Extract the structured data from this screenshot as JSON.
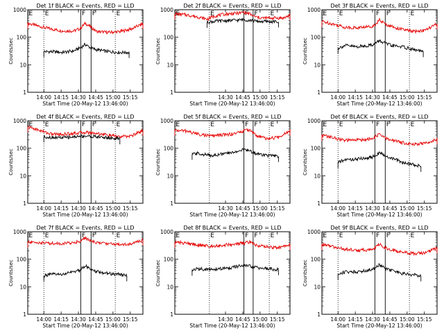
{
  "chart_data": [
    {
      "type": "line",
      "title": "Det 1f BLACK = Events, RED = LLD",
      "xlabel": "Start Time (20-May-12 13:46:00)",
      "ylabel": "Counts/sec",
      "yscale": "log",
      "ylim": [
        1,
        1000
      ],
      "x_ticks": [
        "14:00",
        "14:15",
        "14:30",
        "14:45",
        "15:00",
        "15:15"
      ],
      "x_tick_minutes": [
        14,
        29,
        44,
        59,
        74,
        89
      ],
      "x_range_minutes": [
        0,
        100
      ],
      "y_ticks": [
        "1",
        "10",
        "100",
        "1000"
      ],
      "markers": [
        {
          "label": "E",
          "minute": 0,
          "style": "dotted"
        },
        {
          "label": "E",
          "minute": 14,
          "style": "dotted"
        },
        {
          "label": "F",
          "minute": 46,
          "style": "solid"
        },
        {
          "label": "F",
          "minute": 55,
          "style": "solid"
        },
        {
          "label": "E",
          "minute": 76,
          "style": "dotted"
        }
      ],
      "series": [
        {
          "name": "LLD",
          "color": "#e60000",
          "x": [
            0,
            10,
            20,
            30,
            40,
            45,
            50,
            55,
            60,
            70,
            80,
            90,
            100
          ],
          "y": [
            320,
            250,
            200,
            170,
            170,
            200,
            320,
            230,
            160,
            150,
            160,
            200,
            310
          ]
        },
        {
          "name": "Events",
          "color": "#000000",
          "x": [
            14,
            20,
            30,
            40,
            45,
            50,
            55,
            60,
            70,
            80,
            88
          ],
          "y": [
            30,
            30,
            28,
            32,
            40,
            55,
            40,
            35,
            30,
            28,
            28
          ]
        }
      ]
    },
    {
      "type": "line",
      "title": "Det 2f BLACK = Events, RED = LLD",
      "xlabel": "Start Time (20-May-12 13:46:00)",
      "ylabel": "Counts/sec",
      "yscale": "log",
      "ylim": [
        1,
        1000
      ],
      "x_ticks": [
        "14:30",
        "14:45",
        "15:00",
        "15:15"
      ],
      "x_tick_minutes": [
        44,
        59,
        74,
        89
      ],
      "x_range_minutes": [
        0,
        100
      ],
      "y_ticks": [
        "1",
        "10",
        "100",
        "1000"
      ],
      "markers": [
        {
          "label": "E",
          "minute": 0,
          "style": "dotted"
        },
        {
          "label": "E",
          "minute": 30,
          "style": "dotted"
        },
        {
          "label": "F",
          "minute": 60,
          "style": "solid"
        },
        {
          "label": "F",
          "minute": 68,
          "style": "solid"
        },
        {
          "label": "E",
          "minute": 82,
          "style": "dotted"
        }
      ],
      "series": [
        {
          "name": "LLD",
          "color": "#e60000",
          "x": [
            0,
            10,
            20,
            28,
            35,
            45,
            55,
            60,
            65,
            70,
            75,
            85,
            95,
            100
          ],
          "y": [
            700,
            650,
            550,
            450,
            600,
            700,
            750,
            800,
            700,
            550,
            500,
            500,
            500,
            650
          ]
        },
        {
          "name": "Events",
          "color": "#000000",
          "x": [
            28,
            35,
            45,
            55,
            60,
            65,
            70,
            80,
            90
          ],
          "y": [
            350,
            380,
            400,
            420,
            430,
            420,
            380,
            370,
            360
          ]
        }
      ]
    },
    {
      "type": "line",
      "title": "Det 3f BLACK = Events, RED = LLD",
      "xlabel": "Start Time (20-May-12 13:46:00)",
      "ylabel": "Counts/sec",
      "yscale": "log",
      "ylim": [
        1,
        1000
      ],
      "x_ticks": [
        "14:00",
        "14:15",
        "14:30",
        "14:45",
        "15:00",
        "15:15"
      ],
      "x_tick_minutes": [
        14,
        29,
        44,
        59,
        74,
        89
      ],
      "x_range_minutes": [
        0,
        100
      ],
      "y_ticks": [
        "1",
        "10",
        "100",
        "1000"
      ],
      "markers": [
        {
          "label": "E",
          "minute": 0,
          "style": "dotted"
        },
        {
          "label": "E",
          "minute": 14,
          "style": "dotted"
        },
        {
          "label": "F",
          "minute": 46,
          "style": "solid"
        },
        {
          "label": "F",
          "minute": 55,
          "style": "solid"
        },
        {
          "label": "E",
          "minute": 76,
          "style": "dotted"
        }
      ],
      "series": [
        {
          "name": "LLD",
          "color": "#e60000",
          "x": [
            0,
            10,
            20,
            30,
            40,
            45,
            50,
            55,
            60,
            70,
            80,
            90,
            100
          ],
          "y": [
            380,
            300,
            230,
            220,
            240,
            260,
            420,
            300,
            250,
            190,
            160,
            180,
            300
          ]
        },
        {
          "name": "Events",
          "color": "#000000",
          "x": [
            14,
            20,
            30,
            40,
            45,
            50,
            55,
            60,
            70,
            80,
            88
          ],
          "y": [
            40,
            50,
            45,
            50,
            55,
            75,
            60,
            50,
            45,
            35,
            30
          ]
        }
      ]
    },
    {
      "type": "line",
      "title": "Det 4f BLACK = Events, RED = LLD",
      "xlabel": "Start Time (20-May-12 13:46:00)",
      "ylabel": "Counts/sec",
      "yscale": "log",
      "ylim": [
        1,
        1000
      ],
      "x_ticks": [
        "14:00",
        "14:15",
        "14:30",
        "14:45",
        "15:00",
        "15:15"
      ],
      "x_tick_minutes": [
        14,
        29,
        44,
        59,
        74,
        89
      ],
      "x_range_minutes": [
        0,
        100
      ],
      "y_ticks": [
        "1",
        "10",
        "100",
        "1000"
      ],
      "markers": [
        {
          "label": "E",
          "minute": 0,
          "style": "dotted"
        },
        {
          "label": "E",
          "minute": 14,
          "style": "dotted"
        },
        {
          "label": "F",
          "minute": 46,
          "style": "solid"
        },
        {
          "label": "F",
          "minute": 55,
          "style": "solid"
        },
        {
          "label": "E",
          "minute": 76,
          "style": "dotted"
        }
      ],
      "series": [
        {
          "name": "LLD",
          "color": "#e60000",
          "x": [
            0,
            10,
            20,
            30,
            40,
            50,
            60,
            70,
            80,
            90,
            100
          ],
          "y": [
            600,
            450,
            330,
            320,
            350,
            380,
            350,
            300,
            260,
            280,
            450
          ]
        },
        {
          "name": "Events",
          "color": "#000000",
          "x": [
            14,
            20,
            30,
            40,
            50,
            60,
            70,
            80
          ],
          "y": [
            260,
            250,
            240,
            260,
            280,
            260,
            240,
            220
          ]
        }
      ]
    },
    {
      "type": "line",
      "title": "Det 5f BLACK = Events, RED = LLD",
      "xlabel": "Start Time (20-May-12 13:46:00)",
      "ylabel": "Counts/sec",
      "yscale": "log",
      "ylim": [
        1,
        1000
      ],
      "x_ticks": [
        "14:30",
        "14:45",
        "15:00",
        "15:15"
      ],
      "x_tick_minutes": [
        44,
        59,
        74,
        89
      ],
      "x_range_minutes": [
        0,
        100
      ],
      "y_ticks": [
        "1",
        "10",
        "100",
        "1000"
      ],
      "markers": [
        {
          "label": "E",
          "minute": 0,
          "style": "dotted"
        },
        {
          "label": "E",
          "minute": 30,
          "style": "dotted"
        },
        {
          "label": "F",
          "minute": 60,
          "style": "solid"
        },
        {
          "label": "F",
          "minute": 68,
          "style": "solid"
        },
        {
          "label": "E",
          "minute": 82,
          "style": "dotted"
        }
      ],
      "series": [
        {
          "name": "LLD",
          "color": "#e60000",
          "x": [
            0,
            10,
            20,
            30,
            40,
            50,
            60,
            65,
            70,
            80,
            90,
            100
          ],
          "y": [
            450,
            420,
            330,
            280,
            300,
            330,
            420,
            480,
            300,
            220,
            250,
            450
          ]
        },
        {
          "name": "Events",
          "color": "#000000",
          "x": [
            15,
            20,
            30,
            40,
            50,
            60,
            65,
            70,
            80,
            90
          ],
          "y": [
            60,
            65,
            55,
            60,
            70,
            90,
            80,
            65,
            55,
            50
          ]
        }
      ]
    },
    {
      "type": "line",
      "title": "Det 6f BLACK = Events, RED = LLD",
      "xlabel": "Start Time (20-May-12 13:46:00)",
      "ylabel": "Counts/sec",
      "yscale": "log",
      "ylim": [
        1,
        1000
      ],
      "x_ticks": [
        "14:00",
        "14:15",
        "14:30",
        "14:45",
        "15:00",
        "15:15"
      ],
      "x_tick_minutes": [
        14,
        29,
        44,
        59,
        74,
        89
      ],
      "x_range_minutes": [
        0,
        100
      ],
      "y_ticks": [
        "1",
        "10",
        "100",
        "1000"
      ],
      "markers": [
        {
          "label": "E",
          "minute": 0,
          "style": "dotted"
        },
        {
          "label": "E",
          "minute": 14,
          "style": "dotted"
        },
        {
          "label": "F",
          "minute": 46,
          "style": "solid"
        },
        {
          "label": "F",
          "minute": 55,
          "style": "solid"
        },
        {
          "label": "E",
          "minute": 76,
          "style": "dotted"
        }
      ],
      "series": [
        {
          "name": "LLD",
          "color": "#e60000",
          "x": [
            0,
            10,
            20,
            30,
            40,
            45,
            50,
            55,
            60,
            70,
            80,
            90,
            100
          ],
          "y": [
            300,
            240,
            190,
            200,
            210,
            230,
            330,
            230,
            200,
            160,
            140,
            150,
            220
          ]
        },
        {
          "name": "Events",
          "color": "#000000",
          "x": [
            14,
            20,
            30,
            40,
            45,
            50,
            55,
            60,
            70,
            80,
            86
          ],
          "y": [
            30,
            38,
            40,
            45,
            50,
            70,
            50,
            45,
            30,
            25,
            22
          ]
        }
      ]
    },
    {
      "type": "line",
      "title": "Det 7f BLACK = Events, RED = LLD",
      "xlabel": "Start Time (20-May-12 13:46:00)",
      "ylabel": "Counts/sec",
      "yscale": "log",
      "ylim": [
        1,
        1000
      ],
      "x_ticks": [
        "14:00",
        "14:15",
        "14:30",
        "14:45",
        "15:00",
        "15:15"
      ],
      "x_tick_minutes": [
        14,
        29,
        44,
        59,
        74,
        89
      ],
      "x_range_minutes": [
        0,
        100
      ],
      "y_ticks": [
        "1",
        "10",
        "100",
        "1000"
      ],
      "markers": [
        {
          "label": "E",
          "minute": 0,
          "style": "dotted"
        },
        {
          "label": "E",
          "minute": 14,
          "style": "dotted"
        },
        {
          "label": "F",
          "minute": 46,
          "style": "solid"
        },
        {
          "label": "F",
          "minute": 55,
          "style": "solid"
        },
        {
          "label": "E",
          "minute": 76,
          "style": "dotted"
        }
      ],
      "series": [
        {
          "name": "LLD",
          "color": "#e60000",
          "x": [
            0,
            10,
            20,
            30,
            40,
            45,
            50,
            55,
            60,
            70,
            80,
            90,
            100
          ],
          "y": [
            420,
            400,
            380,
            370,
            400,
            450,
            600,
            440,
            400,
            370,
            350,
            360,
            500
          ]
        },
        {
          "name": "Events",
          "color": "#000000",
          "x": [
            14,
            20,
            30,
            40,
            45,
            50,
            55,
            60,
            70,
            80,
            86
          ],
          "y": [
            25,
            28,
            28,
            35,
            40,
            60,
            40,
            35,
            30,
            28,
            25
          ]
        }
      ]
    },
    {
      "type": "line",
      "title": "Det 8f BLACK = Events, RED = LLD",
      "xlabel": "Start Time (20-May-12 13:46:00)",
      "ylabel": "Counts/sec",
      "yscale": "log",
      "ylim": [
        1,
        1000
      ],
      "x_ticks": [
        "14:30",
        "14:45",
        "15:00",
        "15:15"
      ],
      "x_tick_minutes": [
        44,
        59,
        74,
        89
      ],
      "x_range_minutes": [
        0,
        100
      ],
      "y_ticks": [
        "1",
        "10",
        "100",
        "1000"
      ],
      "markers": [
        {
          "label": "E",
          "minute": 0,
          "style": "dotted"
        },
        {
          "label": "E",
          "minute": 30,
          "style": "dotted"
        },
        {
          "label": "F",
          "minute": 60,
          "style": "solid"
        },
        {
          "label": "F",
          "minute": 68,
          "style": "solid"
        },
        {
          "label": "E",
          "minute": 82,
          "style": "dotted"
        }
      ],
      "series": [
        {
          "name": "LLD",
          "color": "#e60000",
          "x": [
            0,
            10,
            20,
            30,
            40,
            50,
            60,
            65,
            70,
            80,
            90,
            100
          ],
          "y": [
            420,
            380,
            330,
            300,
            320,
            350,
            380,
            420,
            330,
            280,
            260,
            350
          ]
        },
        {
          "name": "Events",
          "color": "#000000",
          "x": [
            15,
            20,
            30,
            40,
            50,
            60,
            65,
            70,
            80,
            90
          ],
          "y": [
            40,
            45,
            42,
            45,
            50,
            60,
            55,
            50,
            45,
            42
          ]
        }
      ]
    },
    {
      "type": "line",
      "title": "Det 9f BLACK = Events, RED = LLD",
      "xlabel": "Start Time (20-May-12 13:46:00)",
      "ylabel": "Counts/sec",
      "yscale": "log",
      "ylim": [
        1,
        1000
      ],
      "x_ticks": [
        "14:00",
        "14:15",
        "14:30",
        "14:45",
        "15:00",
        "15:15"
      ],
      "x_tick_minutes": [
        14,
        29,
        44,
        59,
        74,
        89
      ],
      "x_range_minutes": [
        0,
        100
      ],
      "y_ticks": [
        "1",
        "10",
        "100",
        "1000"
      ],
      "markers": [
        {
          "label": "E",
          "minute": 0,
          "style": "dotted"
        },
        {
          "label": "E",
          "minute": 14,
          "style": "dotted"
        },
        {
          "label": "F",
          "minute": 46,
          "style": "solid"
        },
        {
          "label": "F",
          "minute": 55,
          "style": "solid"
        },
        {
          "label": "E",
          "minute": 76,
          "style": "dotted"
        }
      ],
      "series": [
        {
          "name": "LLD",
          "color": "#e60000",
          "x": [
            0,
            10,
            20,
            30,
            40,
            45,
            50,
            55,
            60,
            70,
            80,
            90,
            100
          ],
          "y": [
            350,
            280,
            230,
            210,
            220,
            240,
            350,
            260,
            220,
            180,
            160,
            170,
            260
          ]
        },
        {
          "name": "Events",
          "color": "#000000",
          "x": [
            14,
            20,
            30,
            40,
            45,
            50,
            55,
            60,
            70,
            80,
            86
          ],
          "y": [
            28,
            35,
            35,
            40,
            45,
            65,
            45,
            40,
            30,
            27,
            25
          ]
        }
      ]
    }
  ]
}
